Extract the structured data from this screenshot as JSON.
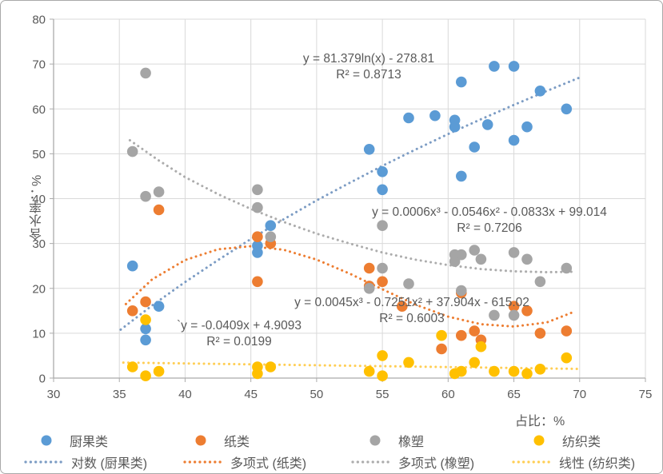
{
  "chart_data": {
    "type": "scatter",
    "title": "",
    "xlabel": "占比：%",
    "ylabel": "含水率：%",
    "grid": true,
    "x_axis": {
      "min": 30,
      "max": 75,
      "ticks": [
        30,
        35,
        40,
        45,
        50,
        55,
        60,
        65,
        70,
        75
      ]
    },
    "y_axis": {
      "min": 0,
      "max": 80,
      "ticks": [
        0,
        10,
        20,
        30,
        40,
        50,
        60,
        70,
        80
      ]
    },
    "series": [
      {
        "name": "厨果类",
        "color": "#5B9BD5",
        "points": [
          [
            36,
            25
          ],
          [
            37,
            11
          ],
          [
            37,
            8.5
          ],
          [
            38,
            16
          ],
          [
            45.5,
            29.5
          ],
          [
            45.5,
            28
          ],
          [
            46.5,
            34
          ],
          [
            54,
            51
          ],
          [
            55,
            46
          ],
          [
            55,
            42
          ],
          [
            57,
            58
          ],
          [
            59,
            58.5
          ],
          [
            60.5,
            57.5
          ],
          [
            60.5,
            56
          ],
          [
            61,
            66
          ],
          [
            61,
            45
          ],
          [
            62,
            51.5
          ],
          [
            63,
            56.5
          ],
          [
            63.5,
            69.5
          ],
          [
            65,
            69.5
          ],
          [
            65,
            53
          ],
          [
            66,
            56
          ],
          [
            67,
            64
          ],
          [
            69,
            60
          ]
        ]
      },
      {
        "name": "纸类",
        "color": "#ED7D31",
        "points": [
          [
            36,
            15
          ],
          [
            37,
            17
          ],
          [
            38,
            37.5
          ],
          [
            45.5,
            31.5
          ],
          [
            45.5,
            21.5
          ],
          [
            46.5,
            30
          ],
          [
            54,
            24.5
          ],
          [
            54,
            20.5
          ],
          [
            55,
            21.5
          ],
          [
            56.5,
            16
          ],
          [
            59.5,
            6.5
          ],
          [
            61,
            19
          ],
          [
            61,
            9.5
          ],
          [
            62,
            10.5
          ],
          [
            62.5,
            8.5
          ],
          [
            65,
            16
          ],
          [
            66,
            15
          ],
          [
            67,
            10
          ],
          [
            69,
            10.5
          ]
        ]
      },
      {
        "name": "橡塑",
        "color": "#A5A5A5",
        "points": [
          [
            36,
            50.5
          ],
          [
            37,
            68
          ],
          [
            37,
            40.5
          ],
          [
            38,
            41.5
          ],
          [
            45.5,
            42
          ],
          [
            45.5,
            38
          ],
          [
            46.5,
            31.5
          ],
          [
            54,
            20
          ],
          [
            55,
            24.5
          ],
          [
            55,
            34
          ],
          [
            57,
            21
          ],
          [
            60.5,
            27.5
          ],
          [
            60.5,
            26
          ],
          [
            61,
            27.5
          ],
          [
            61,
            19.5
          ],
          [
            62,
            28.5
          ],
          [
            62.5,
            26.5
          ],
          [
            63.5,
            14
          ],
          [
            65,
            14
          ],
          [
            65,
            28
          ],
          [
            66,
            26.5
          ],
          [
            67,
            21.5
          ],
          [
            69,
            24.5
          ]
        ]
      },
      {
        "name": "纺织类",
        "color": "#FFC000",
        "points": [
          [
            36,
            2.5
          ],
          [
            37,
            13
          ],
          [
            37,
            0.5
          ],
          [
            38,
            1.5
          ],
          [
            45.5,
            2.5
          ],
          [
            45.5,
            1
          ],
          [
            46.5,
            2.5
          ],
          [
            54,
            1.5
          ],
          [
            55,
            5
          ],
          [
            55,
            0.5
          ],
          [
            57,
            3.5
          ],
          [
            59.5,
            9.5
          ],
          [
            60.5,
            1
          ],
          [
            61,
            1.5
          ],
          [
            62,
            3.5
          ],
          [
            62.5,
            7
          ],
          [
            63.5,
            1.5
          ],
          [
            65,
            1.5
          ],
          [
            66,
            1
          ],
          [
            67,
            2
          ],
          [
            69,
            4.5
          ]
        ]
      }
    ],
    "trendlines": [
      {
        "name": "对数 (厨果类)",
        "series": "厨果类",
        "kind": "logarithmic",
        "color": "#7C9CC4",
        "equation": "y = 81.379ln(x) - 278.81",
        "r2": "R² = 0.8713",
        "path_points": [
          [
            35.1,
            10.8
          ],
          [
            37.5,
            16.2
          ],
          [
            40,
            21.4
          ],
          [
            42.5,
            26.3
          ],
          [
            45,
            31
          ],
          [
            47.5,
            35.4
          ],
          [
            50,
            39.6
          ],
          [
            52.5,
            43.5
          ],
          [
            55,
            47.3
          ],
          [
            57.5,
            50.9
          ],
          [
            60,
            54.4
          ],
          [
            62.5,
            57.7
          ],
          [
            65,
            60.9
          ],
          [
            67.5,
            64
          ],
          [
            70,
            67
          ]
        ]
      },
      {
        "name": "多项式 (纸类)",
        "series": "纸类",
        "kind": "polynomial",
        "color": "#ED7D31",
        "equation": "y = 0.0045x³ - 0.7251x² + 37.904x - 615.02",
        "r2": "R² = 0.6003",
        "path_points": [
          [
            35.5,
            16.5
          ],
          [
            37.5,
            22
          ],
          [
            40,
            26.3
          ],
          [
            42.5,
            28.7
          ],
          [
            45,
            29.4
          ],
          [
            47.5,
            28.6
          ],
          [
            50,
            26.4
          ],
          [
            52.5,
            23.3
          ],
          [
            55,
            19.8
          ],
          [
            57.5,
            16.4
          ],
          [
            60,
            13.7
          ],
          [
            62.5,
            12
          ],
          [
            65,
            11.5
          ],
          [
            67.5,
            12.4
          ],
          [
            69.5,
            14.7
          ]
        ]
      },
      {
        "name": "多项式 (橡塑)",
        "series": "橡塑",
        "kind": "polynomial",
        "color": "#ACACAC",
        "equation": "y = 0.0006x³ - 0.0546x² - 0.0833x + 99.014",
        "r2": "R² = 0.7206",
        "path_points": [
          [
            35.8,
            53
          ],
          [
            38,
            48.5
          ],
          [
            40,
            44.8
          ],
          [
            42.5,
            41
          ],
          [
            45,
            37.7
          ],
          [
            47.5,
            34.8
          ],
          [
            50,
            32.2
          ],
          [
            52.5,
            30
          ],
          [
            55,
            28
          ],
          [
            57.5,
            26.4
          ],
          [
            60,
            25.2
          ],
          [
            62.5,
            24.3
          ],
          [
            65,
            23.8
          ],
          [
            67.5,
            23.6
          ],
          [
            69.5,
            23.7
          ]
        ]
      },
      {
        "name": "线性 (纺织类)",
        "series": "纺织类",
        "kind": "linear",
        "color": "#FFCE54",
        "equation": "`y = -0.0409x + 4.9093",
        "r2": "R² = 0.0199",
        "path_points": [
          [
            35.3,
            3.46
          ],
          [
            70,
            2.05
          ]
        ]
      }
    ],
    "legend": {
      "position": "bottom",
      "series_labels": [
        "厨果类",
        "纸类",
        "橡塑",
        "纺织类"
      ],
      "trendline_labels": [
        "对数 (厨果类)",
        "多项式 (纸类)",
        "多项式 (橡塑)",
        "线性 (纺织类)"
      ]
    }
  },
  "colors": {
    "gridline": "#D9D9D9",
    "axis": "#ABABAB",
    "text": "#595959",
    "background": "#FFFFFF",
    "border": "#A9A9A9"
  }
}
